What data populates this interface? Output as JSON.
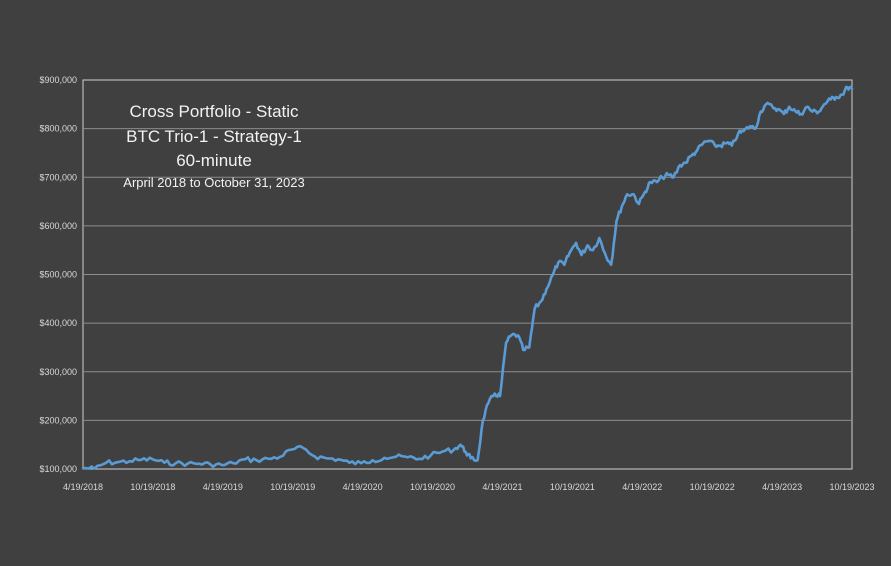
{
  "chart_data": {
    "type": "line",
    "title_lines": [
      "Cross Portfolio - Static",
      "BTC Trio-1 - Strategy-1",
      "60-minute",
      "Arpril 2018 to October 31, 2023"
    ],
    "xlabel": "",
    "ylabel": "",
    "ylim": [
      100000,
      900000
    ],
    "y_ticks": [
      100000,
      200000,
      300000,
      400000,
      500000,
      600000,
      700000,
      800000,
      900000
    ],
    "y_tick_labels": [
      "$100,000",
      "$200,000",
      "$300,000",
      "$400,000",
      "$500,000",
      "$600,000",
      "$700,000",
      "$800,000",
      "$900,000"
    ],
    "x_tick_labels": [
      "4/19/2018",
      "10/19/2018",
      "4/19/2019",
      "10/19/2019",
      "4/19/2020",
      "10/19/2020",
      "4/19/2021",
      "10/19/2021",
      "4/19/2022",
      "10/19/2022",
      "4/19/2023",
      "10/19/2023"
    ],
    "grid": true,
    "line_color": "#5b9bd5",
    "series": [
      {
        "x": [
          "2018-04-19",
          "2018-05-19",
          "2018-06-19",
          "2018-07-19",
          "2018-08-19",
          "2018-09-19",
          "2018-10-19",
          "2018-11-19",
          "2018-12-19",
          "2019-01-19",
          "2019-02-19",
          "2019-03-19",
          "2019-04-19",
          "2019-05-19",
          "2019-06-19",
          "2019-07-19",
          "2019-08-19",
          "2019-09-19",
          "2019-10-19",
          "2019-11-19",
          "2019-12-19",
          "2020-01-19",
          "2020-02-19",
          "2020-03-19",
          "2020-04-19",
          "2020-05-19",
          "2020-06-19",
          "2020-07-19",
          "2020-08-19",
          "2020-09-19",
          "2020-10-19",
          "2020-11-19",
          "2020-12-19",
          "2021-01-05",
          "2021-01-19",
          "2021-02-01",
          "2021-02-19",
          "2021-03-05",
          "2021-03-19",
          "2021-04-05",
          "2021-04-19",
          "2021-05-05",
          "2021-05-19",
          "2021-06-05",
          "2021-06-19",
          "2021-07-05",
          "2021-07-19",
          "2021-08-05",
          "2021-08-19",
          "2021-09-05",
          "2021-09-19",
          "2021-10-05",
          "2021-10-19",
          "2021-11-05",
          "2021-11-19",
          "2021-12-05",
          "2021-12-19",
          "2022-01-05",
          "2022-01-19",
          "2022-02-05",
          "2022-02-19",
          "2022-03-05",
          "2022-03-19",
          "2022-04-05",
          "2022-04-19",
          "2022-05-05",
          "2022-05-19",
          "2022-06-05",
          "2022-06-19",
          "2022-07-05",
          "2022-07-19",
          "2022-08-05",
          "2022-08-19",
          "2022-09-05",
          "2022-09-19",
          "2022-10-05",
          "2022-10-19",
          "2022-11-05",
          "2022-11-19",
          "2022-12-05",
          "2022-12-19",
          "2023-01-05",
          "2023-01-19",
          "2023-02-05",
          "2023-02-19",
          "2023-03-05",
          "2023-03-19",
          "2023-04-05",
          "2023-04-19",
          "2023-05-05",
          "2023-05-19",
          "2023-06-05",
          "2023-06-19",
          "2023-07-05",
          "2023-07-19",
          "2023-08-05",
          "2023-08-19",
          "2023-09-05",
          "2023-09-19",
          "2023-10-05",
          "2023-10-19",
          "2023-10-31"
        ],
        "values": [
          102000,
          101000,
          113000,
          114000,
          116000,
          119000,
          120000,
          113000,
          112000,
          111000,
          111000,
          110000,
          108000,
          112000,
          120000,
          118000,
          121000,
          125000,
          140000,
          143000,
          126000,
          122000,
          120000,
          113000,
          112000,
          118000,
          123000,
          125000,
          124000,
          121000,
          128000,
          136000,
          140000,
          150000,
          135000,
          122000,
          118000,
          200000,
          235000,
          255000,
          250000,
          360000,
          375000,
          375000,
          345000,
          350000,
          430000,
          445000,
          470000,
          500000,
          525000,
          520000,
          545000,
          565000,
          540000,
          560000,
          550000,
          575000,
          545000,
          520000,
          610000,
          640000,
          665000,
          665000,
          645000,
          670000,
          690000,
          690000,
          700000,
          705000,
          700000,
          725000,
          730000,
          745000,
          755000,
          770000,
          775000,
          765000,
          765000,
          770000,
          765000,
          790000,
          795000,
          805000,
          800000,
          835000,
          850000,
          845000,
          840000,
          830000,
          845000,
          835000,
          830000,
          845000,
          835000,
          835000,
          850000,
          860000,
          865000,
          870000,
          885000,
          882000
        ]
      }
    ]
  }
}
